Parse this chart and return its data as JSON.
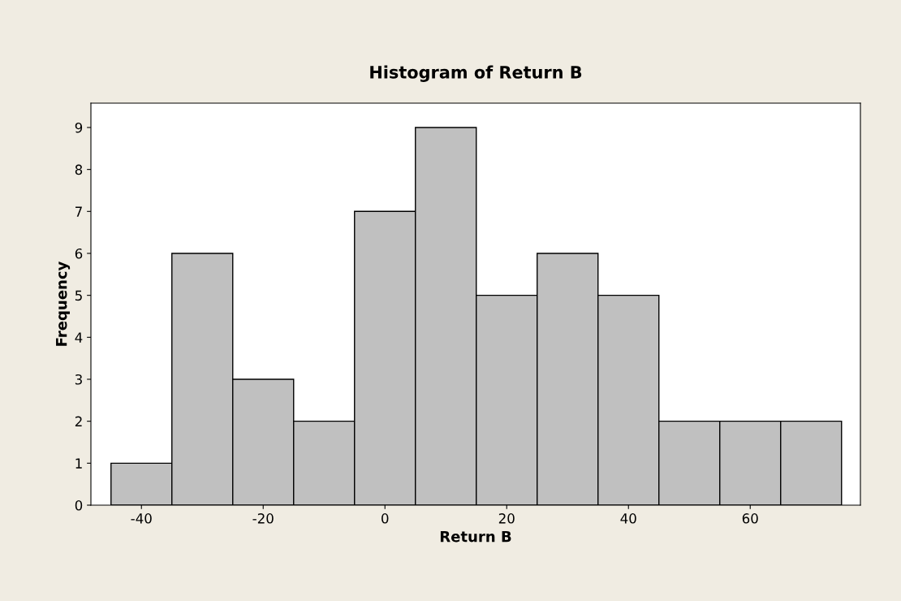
{
  "chart_data": {
    "type": "histogram",
    "title": "Histogram of Return B",
    "xlabel": "Return B",
    "ylabel": "Frequency",
    "bins": [
      -45,
      -35,
      -25,
      -15,
      -5,
      5,
      15,
      25,
      35,
      45,
      55,
      65,
      75
    ],
    "values": [
      1,
      6,
      3,
      2,
      7,
      9,
      5,
      6,
      5,
      2,
      2,
      2
    ],
    "color": "#c0c0c0",
    "xlim": [
      -48.3,
      78.1
    ],
    "xticks": [
      -40,
      -20,
      0,
      20,
      40,
      60
    ],
    "ylim": [
      0,
      9.58
    ],
    "yticks": [
      0,
      1,
      2,
      3,
      4,
      5,
      6,
      7,
      8,
      9
    ],
    "grid": false
  }
}
